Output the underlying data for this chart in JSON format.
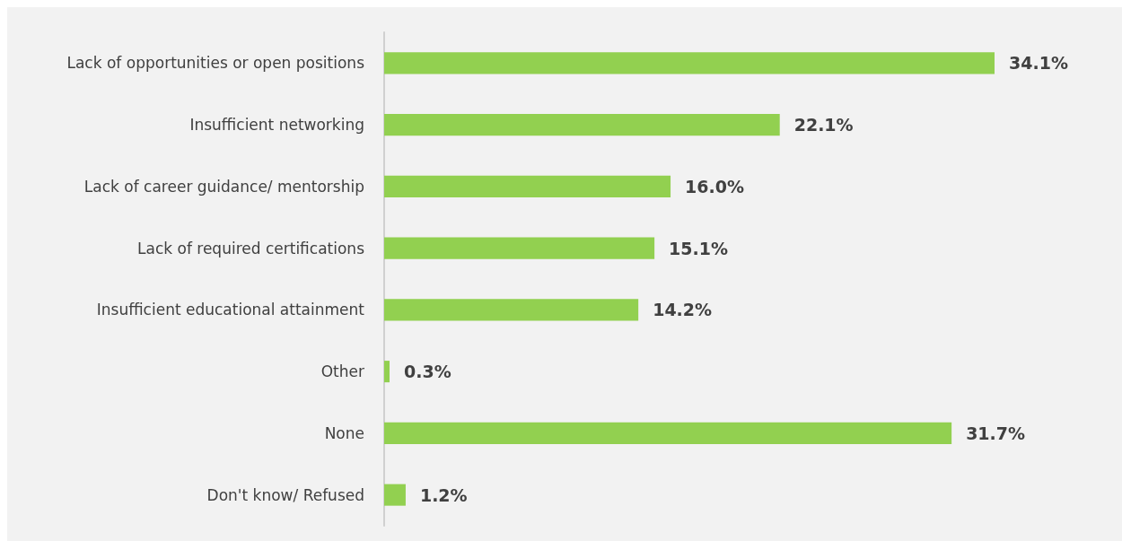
{
  "chart_data": {
    "type": "bar",
    "orientation": "horizontal",
    "categories": [
      "Lack of opportunities or open positions",
      "Insufficient networking",
      "Lack of career guidance/ mentorship",
      "Lack of required certifications",
      "Insufficient educational attainment",
      "Other",
      "None",
      "Don't know/ Refused"
    ],
    "values": [
      34.1,
      22.1,
      16.0,
      15.1,
      14.2,
      0.3,
      31.7,
      1.2
    ],
    "value_labels": [
      "34.1%",
      "22.1%",
      "16.0%",
      "15.1%",
      "14.2%",
      "0.3%",
      "31.7%",
      "1.2%"
    ],
    "color": "#92d050"
  }
}
